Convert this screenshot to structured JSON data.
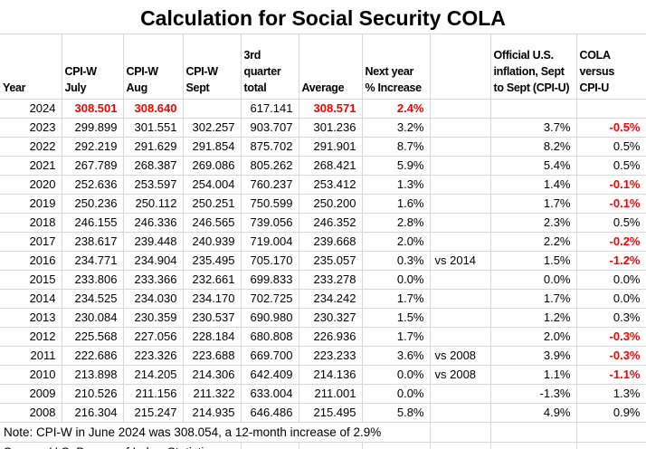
{
  "title": "Calculation for Social Security COLA",
  "note": "Note: CPI-W in June 2024 was 308.054, a 12-month increase of 2.9%",
  "source": "Source: U.S. Bureau of Labor Statistics",
  "colors": {
    "highlight_red": "#ff0000",
    "text": "#000000",
    "gridline": "#d8d8d8",
    "background": "#ffffff"
  },
  "chart_data": {
    "type": "table",
    "title": "Calculation for Social Security COLA",
    "columns": [
      {
        "key": "year",
        "lines": [
          "Year"
        ]
      },
      {
        "key": "july",
        "lines": [
          "CPI-W",
          "July"
        ]
      },
      {
        "key": "aug",
        "lines": [
          "CPI-W",
          "Aug"
        ]
      },
      {
        "key": "sept",
        "lines": [
          "CPI-W",
          "Sept"
        ]
      },
      {
        "key": "total",
        "lines": [
          "3rd",
          "quarter",
          "total"
        ]
      },
      {
        "key": "average",
        "lines": [
          "Average"
        ]
      },
      {
        "key": "increase",
        "lines": [
          "Next year",
          "% Increase"
        ]
      },
      {
        "key": "vs",
        "lines": []
      },
      {
        "key": "cpiu",
        "lines": [
          "Official U.S.",
          "inflation, Sept",
          "to Sept (CPI-U)"
        ]
      },
      {
        "key": "cola",
        "lines": [
          "COLA",
          "versus",
          "CPI-U"
        ]
      }
    ],
    "rows": [
      {
        "year": "2024",
        "july": "308.501",
        "aug": "308.640",
        "sept": "",
        "total": "617.141",
        "average": "308.571",
        "increase": "2.4%",
        "vs": "",
        "cpiu": "",
        "cola": "",
        "red": [
          "july",
          "aug",
          "average",
          "increase"
        ]
      },
      {
        "year": "2023",
        "july": "299.899",
        "aug": "301.551",
        "sept": "302.257",
        "total": "903.707",
        "average": "301.236",
        "increase": "3.2%",
        "vs": "",
        "cpiu": "3.7%",
        "cola": "-0.5%",
        "red": [
          "cola"
        ]
      },
      {
        "year": "2022",
        "july": "292.219",
        "aug": "291.629",
        "sept": "291.854",
        "total": "875.702",
        "average": "291.901",
        "increase": "8.7%",
        "vs": "",
        "cpiu": "8.2%",
        "cola": "0.5%",
        "red": []
      },
      {
        "year": "2021",
        "july": "267.789",
        "aug": "268.387",
        "sept": "269.086",
        "total": "805.262",
        "average": "268.421",
        "increase": "5.9%",
        "vs": "",
        "cpiu": "5.4%",
        "cola": "0.5%",
        "red": []
      },
      {
        "year": "2020",
        "july": "252.636",
        "aug": "253.597",
        "sept": "254.004",
        "total": "760.237",
        "average": "253.412",
        "increase": "1.3%",
        "vs": "",
        "cpiu": "1.4%",
        "cola": "-0.1%",
        "red": [
          "cola"
        ]
      },
      {
        "year": "2019",
        "july": "250.236",
        "aug": "250.112",
        "sept": "250.251",
        "total": "750.599",
        "average": "250.200",
        "increase": "1.6%",
        "vs": "",
        "cpiu": "1.7%",
        "cola": "-0.1%",
        "red": [
          "cola"
        ]
      },
      {
        "year": "2018",
        "july": "246.155",
        "aug": "246.336",
        "sept": "246.565",
        "total": "739.056",
        "average": "246.352",
        "increase": "2.8%",
        "vs": "",
        "cpiu": "2.3%",
        "cola": "0.5%",
        "red": []
      },
      {
        "year": "2017",
        "july": "238.617",
        "aug": "239.448",
        "sept": "240.939",
        "total": "719.004",
        "average": "239.668",
        "increase": "2.0%",
        "vs": "",
        "cpiu": "2.2%",
        "cola": "-0.2%",
        "red": [
          "cola"
        ]
      },
      {
        "year": "2016",
        "july": "234.771",
        "aug": "234.904",
        "sept": "235.495",
        "total": "705.170",
        "average": "235.057",
        "increase": "0.3%",
        "vs": "vs 2014",
        "cpiu": "1.5%",
        "cola": "-1.2%",
        "red": [
          "cola"
        ]
      },
      {
        "year": "2015",
        "july": "233.806",
        "aug": "233.366",
        "sept": "232.661",
        "total": "699.833",
        "average": "233.278",
        "increase": "0.0%",
        "vs": "",
        "cpiu": "0.0%",
        "cola": "0.0%",
        "red": []
      },
      {
        "year": "2014",
        "july": "234.525",
        "aug": "234.030",
        "sept": "234.170",
        "total": "702.725",
        "average": "234.242",
        "increase": "1.7%",
        "vs": "",
        "cpiu": "1.7%",
        "cola": "0.0%",
        "red": []
      },
      {
        "year": "2013",
        "july": "230.084",
        "aug": "230.359",
        "sept": "230.537",
        "total": "690.980",
        "average": "230.327",
        "increase": "1.5%",
        "vs": "",
        "cpiu": "1.2%",
        "cola": "0.3%",
        "red": []
      },
      {
        "year": "2012",
        "july": "225.568",
        "aug": "227.056",
        "sept": "228.184",
        "total": "680.808",
        "average": "226.936",
        "increase": "1.7%",
        "vs": "",
        "cpiu": "2.0%",
        "cola": "-0.3%",
        "red": [
          "cola"
        ]
      },
      {
        "year": "2011",
        "july": "222.686",
        "aug": "223.326",
        "sept": "223.688",
        "total": "669.700",
        "average": "223.233",
        "increase": "3.6%",
        "vs": "vs 2008",
        "cpiu": "3.9%",
        "cola": "-0.3%",
        "red": [
          "cola"
        ]
      },
      {
        "year": "2010",
        "july": "213.898",
        "aug": "214.205",
        "sept": "214.306",
        "total": "642.409",
        "average": "214.136",
        "increase": "0.0%",
        "vs": "vs 2008",
        "cpiu": "1.1%",
        "cola": "-1.1%",
        "red": [
          "cola"
        ]
      },
      {
        "year": "2009",
        "july": "210.526",
        "aug": "211.156",
        "sept": "211.322",
        "total": "633.004",
        "average": "211.001",
        "increase": "0.0%",
        "vs": "",
        "cpiu": "-1.3%",
        "cola": "1.3%",
        "red": []
      },
      {
        "year": "2008",
        "july": "216.304",
        "aug": "215.247",
        "sept": "214.935",
        "total": "646.486",
        "average": "215.495",
        "increase": "5.8%",
        "vs": "",
        "cpiu": "4.9%",
        "cola": "0.9%",
        "red": []
      }
    ]
  }
}
